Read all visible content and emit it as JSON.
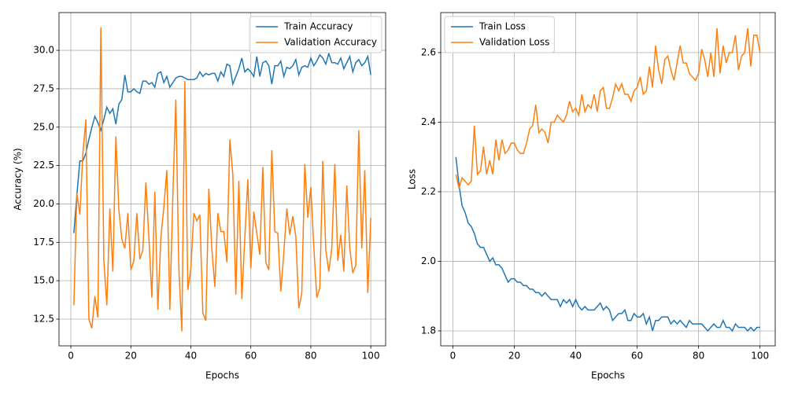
{
  "chart_data": [
    {
      "type": "line",
      "xlabel": "Epochs",
      "ylabel": "Accuracy (%)",
      "grid": true,
      "legend": "upper right",
      "x": [
        1,
        2,
        3,
        4,
        5,
        6,
        7,
        8,
        9,
        10,
        11,
        12,
        13,
        14,
        15,
        16,
        17,
        18,
        19,
        20,
        21,
        22,
        23,
        24,
        25,
        26,
        27,
        28,
        29,
        30,
        31,
        32,
        33,
        34,
        35,
        36,
        37,
        38,
        39,
        40,
        41,
        42,
        43,
        44,
        45,
        46,
        47,
        48,
        49,
        50,
        51,
        52,
        53,
        54,
        55,
        56,
        57,
        58,
        59,
        60,
        61,
        62,
        63,
        64,
        65,
        66,
        67,
        68,
        69,
        70,
        71,
        72,
        73,
        74,
        75,
        76,
        77,
        78,
        79,
        80,
        81,
        82,
        83,
        84,
        85,
        86,
        87,
        88,
        89,
        90,
        91,
        92,
        93,
        94,
        95,
        96,
        97,
        98,
        99,
        100
      ],
      "xlim": [
        -3.95,
        104.95
      ],
      "xticks": [
        0,
        20,
        40,
        60,
        80,
        100
      ],
      "ylim": [
        10.76,
        32.46
      ],
      "yticks": [
        12.5,
        {
          "value": 15,
          "label": "15.0"
        },
        17.5,
        {
          "value": 20,
          "label": "20.0"
        },
        22.5,
        {
          "value": 25,
          "label": "25.0"
        },
        27.5,
        {
          "value": 30,
          "label": "30.0"
        }
      ],
      "series": [
        {
          "name": "Train Accuracy",
          "color": "#1f77b4",
          "values": [
            18.1,
            20.6,
            22.8,
            22.8,
            23.3,
            24.2,
            25.0,
            25.7,
            25.3,
            24.8,
            25.5,
            26.3,
            25.9,
            26.2,
            25.2,
            26.5,
            26.8,
            28.4,
            27.3,
            27.3,
            27.5,
            27.3,
            27.2,
            28.0,
            28.0,
            27.8,
            27.9,
            27.6,
            28.5,
            28.6,
            27.9,
            28.3,
            27.6,
            27.9,
            28.2,
            28.3,
            28.3,
            28.2,
            28.1,
            28.1,
            28.1,
            28.2,
            28.6,
            28.3,
            28.5,
            28.4,
            28.5,
            28.5,
            28.0,
            28.6,
            28.3,
            29.1,
            29.0,
            27.8,
            28.3,
            28.8,
            29.5,
            28.6,
            28.8,
            28.6,
            28.3,
            29.6,
            28.3,
            29.2,
            29.3,
            29.0,
            27.8,
            29.0,
            29.0,
            29.3,
            28.3,
            28.9,
            28.8,
            29.0,
            29.4,
            28.4,
            28.9,
            29.0,
            28.9,
            29.5,
            29.0,
            29.3,
            29.7,
            29.5,
            29.1,
            29.8,
            29.2,
            29.2,
            29.1,
            29.5,
            28.8,
            29.2,
            29.6,
            28.6,
            29.2,
            29.4,
            29.0,
            29.2,
            29.6,
            28.4
          ]
        },
        {
          "name": "Validation Accuracy",
          "color": "#ff7f0e",
          "values": [
            13.4,
            20.7,
            19.3,
            23.3,
            25.5,
            12.5,
            11.9,
            14.0,
            12.6,
            31.5,
            16.3,
            13.4,
            19.7,
            15.6,
            24.4,
            19.6,
            17.7,
            17.1,
            19.4,
            15.7,
            16.3,
            19.4,
            16.4,
            17.0,
            21.4,
            17.9,
            13.9,
            20.8,
            13.1,
            17.8,
            19.8,
            22.2,
            13.1,
            20.5,
            26.8,
            15.8,
            11.7,
            28.0,
            14.4,
            15.8,
            19.4,
            18.9,
            19.3,
            12.9,
            12.4,
            21.0,
            17.1,
            14.6,
            19.4,
            18.2,
            18.2,
            16.2,
            24.2,
            21.9,
            14.1,
            21.5,
            13.8,
            17.8,
            21.6,
            15.8,
            19.5,
            18.1,
            16.7,
            22.4,
            16.2,
            15.7,
            23.5,
            18.2,
            18.1,
            14.3,
            16.8,
            19.7,
            18.0,
            19.2,
            17.9,
            13.2,
            14.2,
            22.6,
            19.1,
            21.1,
            17.2,
            13.9,
            14.5,
            22.8,
            17.0,
            15.6,
            17.1,
            22.6,
            16.3,
            18.0,
            15.6,
            21.2,
            17.1,
            15.5,
            16.0,
            24.8,
            17.1,
            22.2,
            14.2,
            19.1
          ]
        }
      ]
    },
    {
      "type": "line",
      "xlabel": "Epochs",
      "ylabel": "Loss",
      "grid": true,
      "legend": "upper left",
      "x": [
        1,
        2,
        3,
        4,
        5,
        6,
        7,
        8,
        9,
        10,
        11,
        12,
        13,
        14,
        15,
        16,
        17,
        18,
        19,
        20,
        21,
        22,
        23,
        24,
        25,
        26,
        27,
        28,
        29,
        30,
        31,
        32,
        33,
        34,
        35,
        36,
        37,
        38,
        39,
        40,
        41,
        42,
        43,
        44,
        45,
        46,
        47,
        48,
        49,
        50,
        51,
        52,
        53,
        54,
        55,
        56,
        57,
        58,
        59,
        60,
        61,
        62,
        63,
        64,
        65,
        66,
        67,
        68,
        69,
        70,
        71,
        72,
        73,
        74,
        75,
        76,
        77,
        78,
        79,
        80,
        81,
        82,
        83,
        84,
        85,
        86,
        87,
        88,
        89,
        90,
        91,
        92,
        93,
        94,
        95,
        96,
        97,
        98,
        99,
        100
      ],
      "xlim": [
        -3.95,
        104.95
      ],
      "xticks": [
        0,
        20,
        40,
        60,
        80,
        100
      ],
      "ylim": [
        1.757,
        2.715
      ],
      "yticks": [
        1.8,
        {
          "value": 2,
          "label": "2.0"
        },
        2.2,
        2.4,
        2.6
      ],
      "series": [
        {
          "name": "Train Loss",
          "color": "#1f77b4",
          "values": [
            2.3,
            2.22,
            2.16,
            2.14,
            2.11,
            2.1,
            2.08,
            2.05,
            2.04,
            2.04,
            2.02,
            2.0,
            2.01,
            1.99,
            1.99,
            1.98,
            1.96,
            1.94,
            1.95,
            1.95,
            1.94,
            1.94,
            1.93,
            1.93,
            1.92,
            1.92,
            1.91,
            1.91,
            1.9,
            1.91,
            1.9,
            1.89,
            1.89,
            1.89,
            1.87,
            1.89,
            1.88,
            1.89,
            1.87,
            1.89,
            1.87,
            1.86,
            1.87,
            1.86,
            1.86,
            1.86,
            1.87,
            1.88,
            1.86,
            1.87,
            1.86,
            1.83,
            1.84,
            1.85,
            1.85,
            1.86,
            1.83,
            1.83,
            1.85,
            1.84,
            1.84,
            1.85,
            1.82,
            1.84,
            1.8,
            1.83,
            1.83,
            1.84,
            1.84,
            1.84,
            1.82,
            1.83,
            1.82,
            1.83,
            1.82,
            1.81,
            1.83,
            1.82,
            1.82,
            1.82,
            1.82,
            1.81,
            1.8,
            1.81,
            1.82,
            1.81,
            1.81,
            1.83,
            1.81,
            1.81,
            1.8,
            1.82,
            1.81,
            1.81,
            1.81,
            1.8,
            1.81,
            1.8,
            1.81,
            1.81
          ]
        },
        {
          "name": "Validation Loss",
          "color": "#ff7f0e",
          "values": [
            2.25,
            2.21,
            2.24,
            2.23,
            2.22,
            2.23,
            2.39,
            2.25,
            2.26,
            2.33,
            2.25,
            2.29,
            2.25,
            2.35,
            2.29,
            2.35,
            2.31,
            2.32,
            2.34,
            2.34,
            2.32,
            2.31,
            2.31,
            2.34,
            2.38,
            2.39,
            2.45,
            2.37,
            2.38,
            2.37,
            2.34,
            2.4,
            2.4,
            2.42,
            2.41,
            2.4,
            2.42,
            2.46,
            2.43,
            2.44,
            2.42,
            2.48,
            2.43,
            2.45,
            2.44,
            2.48,
            2.43,
            2.49,
            2.5,
            2.44,
            2.44,
            2.47,
            2.51,
            2.49,
            2.51,
            2.48,
            2.48,
            2.46,
            2.49,
            2.5,
            2.53,
            2.48,
            2.49,
            2.56,
            2.5,
            2.62,
            2.55,
            2.51,
            2.58,
            2.59,
            2.55,
            2.52,
            2.57,
            2.62,
            2.57,
            2.57,
            2.54,
            2.53,
            2.52,
            2.54,
            2.61,
            2.58,
            2.53,
            2.6,
            2.53,
            2.67,
            2.54,
            2.62,
            2.57,
            2.6,
            2.6,
            2.65,
            2.55,
            2.59,
            2.6,
            2.67,
            2.56,
            2.65,
            2.65,
            2.6
          ]
        }
      ]
    }
  ]
}
